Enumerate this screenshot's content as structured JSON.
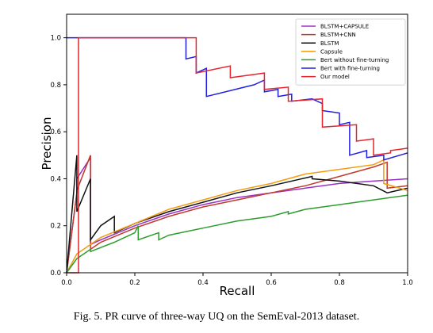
{
  "caption": "Fig. 5.    PR curve of three-way UQ on the SemEval-2013 dataset.",
  "chart_data": {
    "type": "line",
    "title": "",
    "xlabel": "Recall",
    "ylabel": "Precision",
    "xlim": [
      0.0,
      1.0
    ],
    "ylim": [
      0.0,
      1.1
    ],
    "xticks": [
      "0.0",
      "0.2",
      "0.4",
      "0.6",
      "0.8",
      "1.0"
    ],
    "yticks": [
      "0.0",
      "0.2",
      "0.4",
      "0.6",
      "0.8",
      "1.0"
    ],
    "grid": false,
    "legend_position": "top-right",
    "series": [
      {
        "name": "BLSTM+CAPSULE",
        "color": "#9b30c8",
        "x": [
          0.0,
          0.03,
          0.03,
          0.07,
          0.07,
          0.1,
          0.2,
          0.3,
          0.4,
          0.5,
          0.6,
          0.7,
          0.8,
          0.9,
          1.0
        ],
        "y": [
          0.0,
          0.34,
          0.4,
          0.49,
          0.12,
          0.14,
          0.2,
          0.25,
          0.29,
          0.32,
          0.34,
          0.36,
          0.38,
          0.39,
          0.4
        ]
      },
      {
        "name": "BLSTM+CNN",
        "color": "#c0392b",
        "x": [
          0.0,
          0.03,
          0.03,
          0.07,
          0.07,
          0.1,
          0.2,
          0.3,
          0.4,
          0.5,
          0.6,
          0.7,
          0.8,
          0.9,
          0.94,
          0.94,
          1.0
        ],
        "y": [
          0.0,
          0.34,
          0.35,
          0.5,
          0.1,
          0.13,
          0.19,
          0.24,
          0.28,
          0.31,
          0.34,
          0.37,
          0.41,
          0.45,
          0.47,
          0.36,
          0.37
        ]
      },
      {
        "name": "BLSTM",
        "color": "#111111",
        "x": [
          0.0,
          0.03,
          0.03,
          0.07,
          0.07,
          0.1,
          0.14,
          0.14,
          0.2,
          0.3,
          0.4,
          0.5,
          0.6,
          0.72,
          0.72,
          0.8,
          0.9,
          0.94,
          1.0
        ],
        "y": [
          0.0,
          0.5,
          0.26,
          0.4,
          0.14,
          0.2,
          0.24,
          0.17,
          0.21,
          0.26,
          0.3,
          0.34,
          0.37,
          0.41,
          0.4,
          0.39,
          0.37,
          0.34,
          0.36
        ]
      },
      {
        "name": "Capsule",
        "color": "#f39c12",
        "x": [
          0.0,
          0.03,
          0.07,
          0.1,
          0.2,
          0.3,
          0.4,
          0.5,
          0.6,
          0.7,
          0.8,
          0.9,
          0.93,
          0.93,
          1.0
        ],
        "y": [
          0.0,
          0.08,
          0.12,
          0.15,
          0.21,
          0.27,
          0.31,
          0.35,
          0.38,
          0.42,
          0.44,
          0.46,
          0.48,
          0.38,
          0.35
        ]
      },
      {
        "name": "Bert without fine-turning",
        "color": "#2e9c2e",
        "x": [
          0.0,
          0.03,
          0.07,
          0.07,
          0.14,
          0.2,
          0.21,
          0.21,
          0.27,
          0.27,
          0.3,
          0.4,
          0.5,
          0.6,
          0.65,
          0.65,
          0.7,
          0.8,
          0.9,
          1.0
        ],
        "y": [
          0.0,
          0.06,
          0.1,
          0.09,
          0.13,
          0.17,
          0.2,
          0.14,
          0.17,
          0.14,
          0.16,
          0.19,
          0.22,
          0.24,
          0.26,
          0.25,
          0.27,
          0.29,
          0.31,
          0.33
        ]
      },
      {
        "name": "Bert with fine-turning",
        "color": "#1f1fe0",
        "x": [
          0.0,
          0.35,
          0.35,
          0.38,
          0.38,
          0.41,
          0.41,
          0.55,
          0.58,
          0.58,
          0.62,
          0.62,
          0.66,
          0.66,
          0.72,
          0.75,
          0.75,
          0.8,
          0.8,
          0.83,
          0.83,
          0.88,
          0.88,
          0.93,
          0.93,
          1.0
        ],
        "y": [
          1.0,
          1.0,
          0.91,
          0.92,
          0.85,
          0.87,
          0.75,
          0.8,
          0.82,
          0.77,
          0.78,
          0.75,
          0.76,
          0.73,
          0.74,
          0.72,
          0.69,
          0.68,
          0.63,
          0.64,
          0.5,
          0.52,
          0.49,
          0.5,
          0.48,
          0.51
        ]
      },
      {
        "name": "Our model",
        "color": "#e8242b",
        "x": [
          0.0,
          0.035,
          0.035,
          0.035,
          0.38,
          0.38,
          0.48,
          0.48,
          0.58,
          0.58,
          0.65,
          0.65,
          0.75,
          0.75,
          0.85,
          0.85,
          0.9,
          0.9,
          0.95,
          0.95,
          1.0
        ],
        "y": [
          0.0,
          0.0,
          1.0,
          1.0,
          1.0,
          0.85,
          0.88,
          0.83,
          0.85,
          0.78,
          0.79,
          0.73,
          0.74,
          0.62,
          0.63,
          0.56,
          0.57,
          0.5,
          0.51,
          0.52,
          0.53
        ]
      }
    ]
  }
}
